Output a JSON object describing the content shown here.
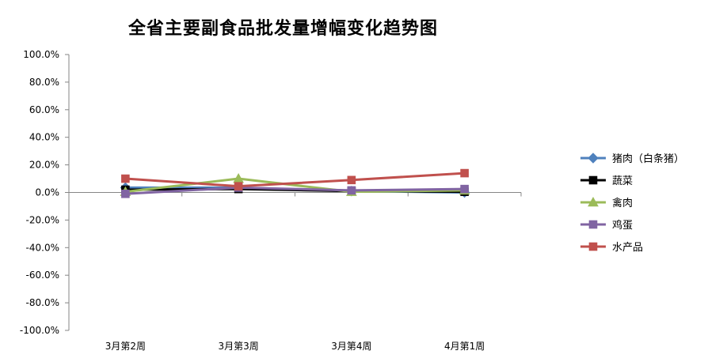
{
  "chart_data": {
    "type": "line",
    "title": "全省主要副食品批发量增幅变化趋势图",
    "categories": [
      "3月第2周",
      "3月第3周",
      "3月第4周",
      "4月第1周"
    ],
    "y_tick_labels": [
      "100.0%",
      "80.0%",
      "60.0%",
      "40.0%",
      "20.0%",
      "0.0%",
      "-20.0%",
      "-40.0%",
      "-60.0%",
      "-80.0%",
      "-100.0%"
    ],
    "ylim": [
      -100,
      100
    ],
    "y_unit": "%",
    "grid": false,
    "legend_position": "right",
    "series": [
      {
        "name": "猪肉（白条猪）",
        "values": [
          3.5,
          3.5,
          1.0,
          0.0
        ],
        "color": "#4f81bd",
        "marker": "diamond"
      },
      {
        "name": "蔬菜",
        "values": [
          2.0,
          2.5,
          1.0,
          0.5
        ],
        "color": "#000000",
        "marker": "square"
      },
      {
        "name": "禽肉",
        "values": [
          0.5,
          10.0,
          0.5,
          1.5
        ],
        "color": "#9bbb59",
        "marker": "triangle"
      },
      {
        "name": "鸡蛋",
        "values": [
          -1.0,
          3.5,
          1.5,
          2.5
        ],
        "color": "#8064a2",
        "marker": "square"
      },
      {
        "name": "水产品",
        "values": [
          10.0,
          4.5,
          9.0,
          14.0
        ],
        "color": "#c0504d",
        "marker": "square"
      }
    ]
  }
}
